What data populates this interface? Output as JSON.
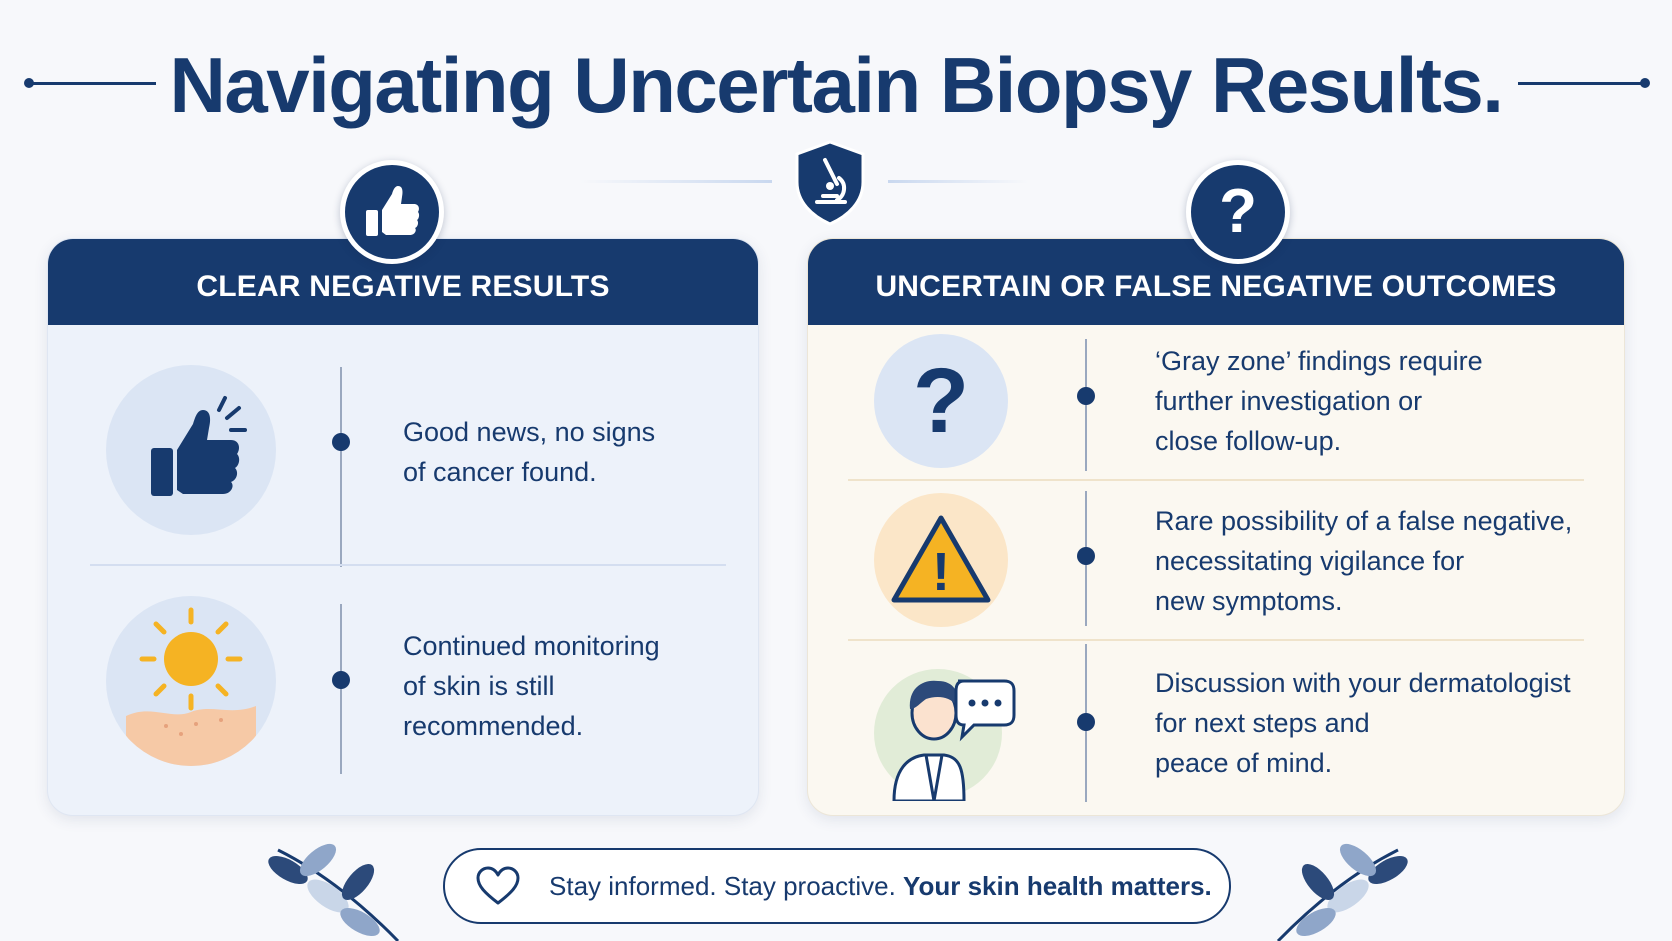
{
  "title": "Navigating Uncertain Biopsy Results.",
  "colors": {
    "navy": "#173a6e",
    "left_panel_bg": "#edf2fa",
    "right_panel_bg": "#fbf8f1",
    "warning_yellow": "#f5b323"
  },
  "center_emblem": {
    "icon": "microscope-shield-icon"
  },
  "left_panel": {
    "header": "CLEAR NEGATIVE RESULTS",
    "badge_icon": "thumbs-up-icon",
    "items": [
      {
        "icon": "thumbs-up-icon",
        "lines": [
          "Good news, no signs",
          "of cancer found."
        ]
      },
      {
        "icon": "sun-skin-icon",
        "lines": [
          "Continued monitoring",
          "of skin is still",
          "recommended."
        ]
      }
    ]
  },
  "right_panel": {
    "header": "UNCERTAIN OR FALSE NEGATIVE OUTCOMES",
    "badge_icon": "question-mark-icon",
    "badge_glyph": "?",
    "items": [
      {
        "icon": "question-mark-icon",
        "glyph": "?",
        "lines": [
          "‘Gray zone’ findings require",
          "further investigation or",
          "close follow-up."
        ]
      },
      {
        "icon": "warning-triangle-icon",
        "glyph": "!",
        "lines": [
          "Rare possibility of a false negative,",
          "necessitating vigilance for",
          "new symptoms."
        ]
      },
      {
        "icon": "doctor-speech-icon",
        "lines": [
          "Discussion with your dermatologist",
          "for next steps and",
          "peace of mind."
        ]
      }
    ]
  },
  "footer": {
    "icon": "heart-icon",
    "text_regular": "Stay informed. Stay proactive. ",
    "text_bold": "Your skin health matters."
  }
}
